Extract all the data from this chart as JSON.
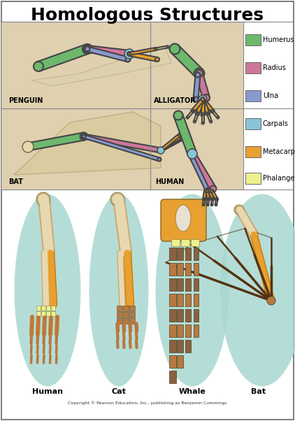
{
  "title": "Homologous Structures",
  "title_fontsize": 18,
  "title_fontweight": "bold",
  "background_color": "#ffffff",
  "border_color": "#888888",
  "legend_items": [
    {
      "label": "Humerus",
      "color": "#6db86d"
    },
    {
      "label": "Radius",
      "color": "#cc7799"
    },
    {
      "label": "Ulna",
      "color": "#8899cc"
    },
    {
      "label": "Carpals",
      "color": "#88c4d8"
    },
    {
      "label": "Metacarpals",
      "color": "#e8a030"
    },
    {
      "label": "Phalanges",
      "color": "#f0f090"
    }
  ],
  "skin_color": "#dfd0b0",
  "teal_color": "#a8d8d0",
  "bone_light": "#e8d8b0",
  "bone_orange": "#e8a030",
  "bone_dark": "#b87840",
  "bone_brown": "#8b6040",
  "humerus_color": "#6db86d",
  "radius_color": "#cc7799",
  "ulna_color": "#8899cc",
  "carpals_color": "#88c4d8",
  "fig_width": 4.22,
  "fig_height": 6.02,
  "dpi": 100,
  "copyright": "Copyright © Pearson Education, Inc., publishing as Benjamin Cummings"
}
